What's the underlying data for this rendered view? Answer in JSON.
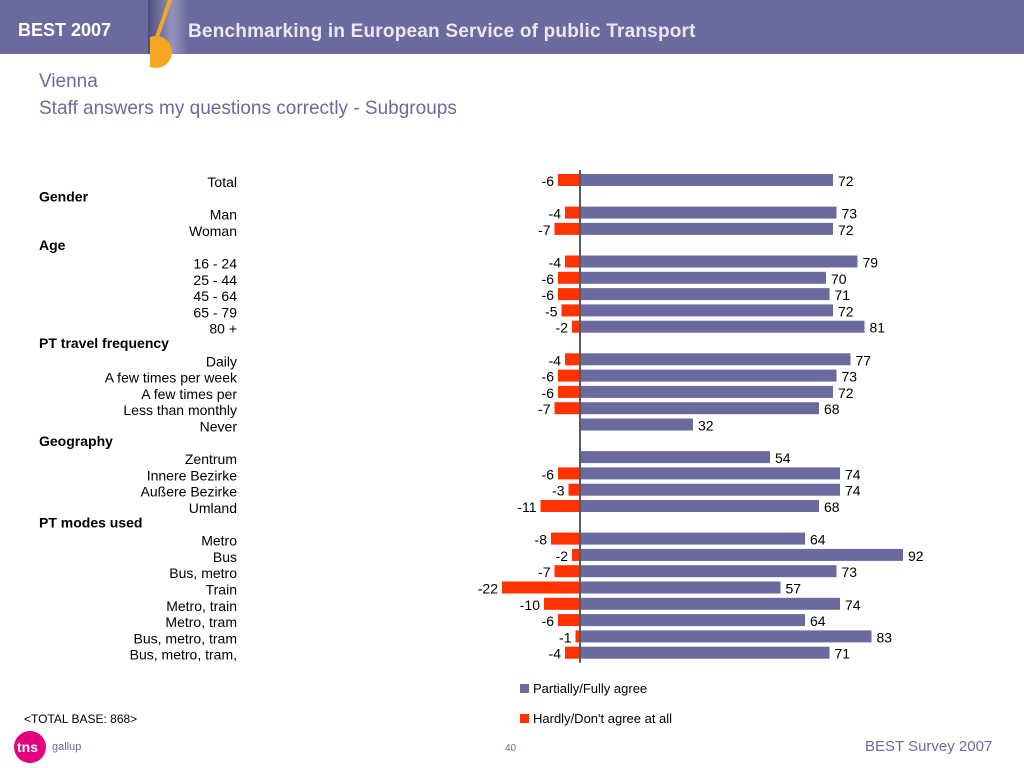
{
  "header": {
    "brand": "BEST 2007",
    "banner": "Benchmarking in European Service of public Transport"
  },
  "title": {
    "city": "Vienna",
    "subtitle": "Staff answers my questions correctly - Subgroups"
  },
  "colors": {
    "header_bg": "#6b6a9e",
    "positive": "#6b6a9e",
    "negative": "#ff3300",
    "accent_orange": "#f5a623"
  },
  "chart_data": {
    "type": "bar",
    "orientation": "horizontal-diverging",
    "rows": [
      {
        "kind": "item",
        "label": "Total",
        "pos": 72,
        "neg": -6
      },
      {
        "kind": "group",
        "label": "Gender"
      },
      {
        "kind": "item",
        "label": "Man",
        "pos": 73,
        "neg": -4
      },
      {
        "kind": "item",
        "label": "Woman",
        "pos": 72,
        "neg": -7
      },
      {
        "kind": "group",
        "label": "Age"
      },
      {
        "kind": "item",
        "label": "16 - 24",
        "pos": 79,
        "neg": -4
      },
      {
        "kind": "item",
        "label": "25 - 44",
        "pos": 70,
        "neg": -6
      },
      {
        "kind": "item",
        "label": "45 - 64",
        "pos": 71,
        "neg": -6
      },
      {
        "kind": "item",
        "label": "65 - 79",
        "pos": 72,
        "neg": -5
      },
      {
        "kind": "item",
        "label": "80 +",
        "pos": 81,
        "neg": -2
      },
      {
        "kind": "group",
        "label": "PT travel frequency"
      },
      {
        "kind": "item",
        "label": "Daily",
        "pos": 77,
        "neg": -4
      },
      {
        "kind": "item",
        "label": "A few times per week",
        "pos": 73,
        "neg": -6
      },
      {
        "kind": "item",
        "label": "A few times per",
        "pos": 72,
        "neg": -6
      },
      {
        "kind": "item",
        "label": "Less than monthly",
        "pos": 68,
        "neg": -7
      },
      {
        "kind": "item",
        "label": "Never",
        "pos": 32,
        "neg": null
      },
      {
        "kind": "group",
        "label": "Geography"
      },
      {
        "kind": "item",
        "label": "Zentrum",
        "pos": 54,
        "neg": null
      },
      {
        "kind": "item",
        "label": "Innere Bezirke",
        "pos": 74,
        "neg": -6
      },
      {
        "kind": "item",
        "label": "Außere Bezirke",
        "pos": 74,
        "neg": -3
      },
      {
        "kind": "item",
        "label": "Umland",
        "pos": 68,
        "neg": -11
      },
      {
        "kind": "group",
        "label": "PT modes used"
      },
      {
        "kind": "item",
        "label": "Metro",
        "pos": 64,
        "neg": -8
      },
      {
        "kind": "item",
        "label": "Bus",
        "pos": 92,
        "neg": -2
      },
      {
        "kind": "item",
        "label": "Bus, metro",
        "pos": 73,
        "neg": -7
      },
      {
        "kind": "item",
        "label": "Train",
        "pos": 57,
        "neg": -22
      },
      {
        "kind": "item",
        "label": "Metro, train",
        "pos": 74,
        "neg": -10
      },
      {
        "kind": "item",
        "label": "Metro, tram",
        "pos": 64,
        "neg": -6
      },
      {
        "kind": "item",
        "label": "Bus, metro, tram",
        "pos": 83,
        "neg": -1
      },
      {
        "kind": "item",
        "label": "Bus, metro, tram,",
        "pos": 71,
        "neg": -4
      }
    ],
    "series": [
      {
        "name": "Partially/Fully agree",
        "key": "pos",
        "color": "#6b6a9e"
      },
      {
        "name": "Hardly/Don't agree at all",
        "key": "neg",
        "color": "#ff3300"
      }
    ]
  },
  "footer": {
    "base_note": "<TOTAL BASE: 868>",
    "logo_mark": "tns",
    "logo_word": "gallup",
    "page_number": "40",
    "survey": "BEST Survey 2007"
  }
}
